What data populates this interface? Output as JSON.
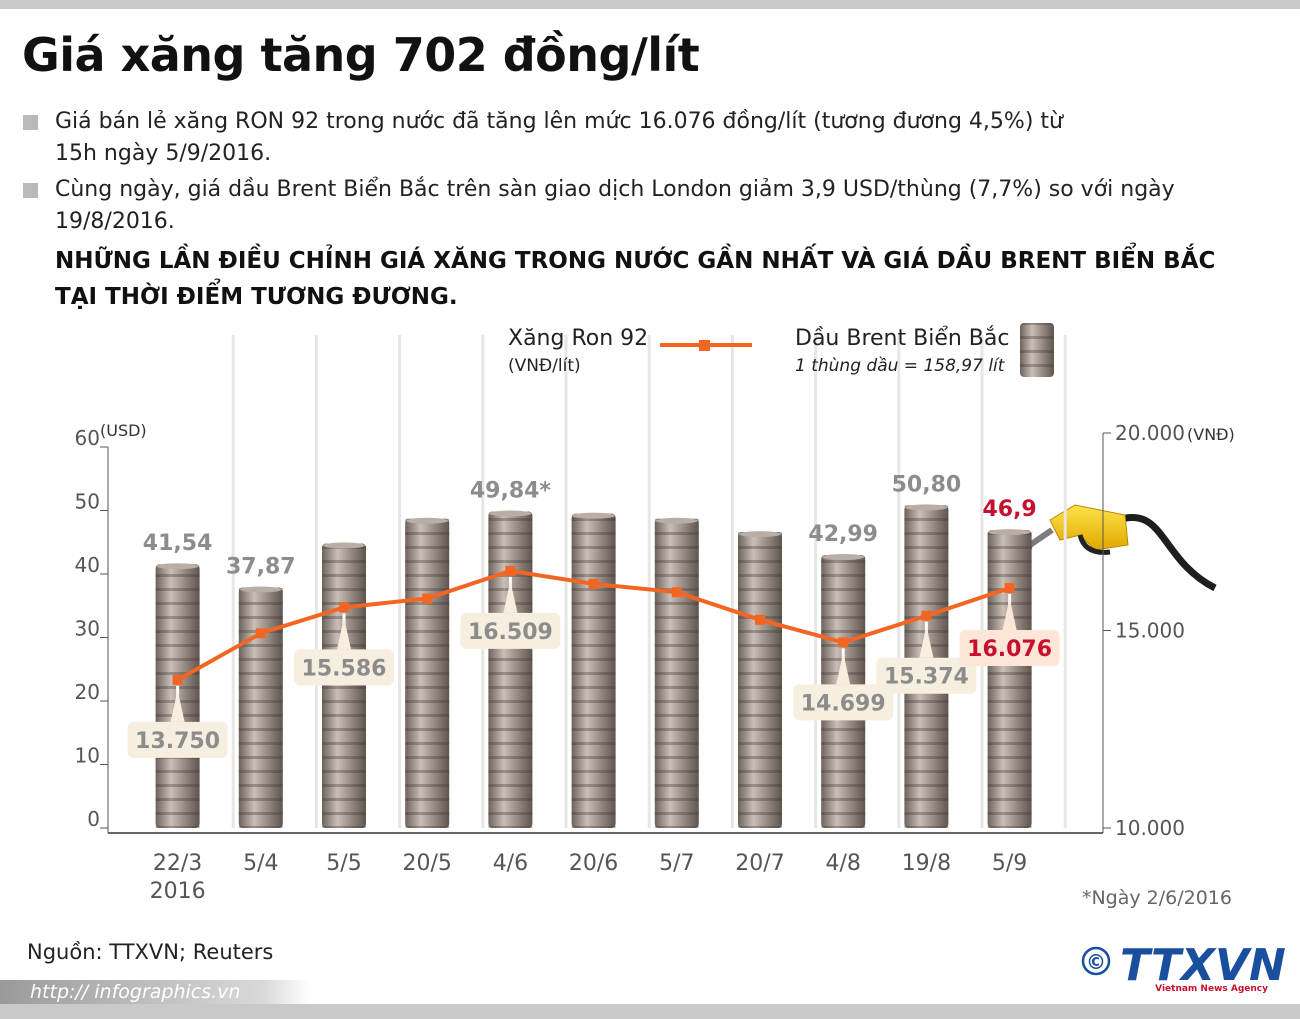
{
  "header": {
    "title": "Giá xăng tăng 702 đồng/lít",
    "bullets": [
      "Giá bán lẻ xăng RON 92 trong nước đã tăng lên mức 16.076 đồng/lít (tương đương 4,5%) từ 15h ngày 5/9/2016.",
      "Cùng ngày, giá dầu Brent Biển Bắc trên sàn giao dịch London giảm 3,9 USD/thùng (7,7%) so với ngày 19/8/2016."
    ]
  },
  "chart_data": {
    "type": "combo",
    "title": [
      "NHỮNG LẦN ĐIỀU CHỈNH GIÁ XĂNG TRONG NƯỚC GẦN NHẤT VÀ GIÁ DẦU BRENT BIỂN BẮC",
      "TẠI THỜI ĐIỂM TƯƠNG ĐƯƠNG."
    ],
    "categories": [
      "22/3",
      "5/4",
      "5/5",
      "20/5",
      "4/6",
      "20/6",
      "5/7",
      "20/7",
      "4/8",
      "19/8",
      "5/9"
    ],
    "category_note": "2016",
    "series": [
      {
        "name": "Xăng Ron 92",
        "unit": "(VNĐ/lít)",
        "type": "line",
        "axis": "y2",
        "color": "#f26522",
        "values": [
          13750,
          14930,
          15586,
          15810,
          16509,
          16180,
          15970,
          15270,
          14699,
          15374,
          16076
        ],
        "value_labels": [
          "13.750",
          null,
          "15.586",
          null,
          "16.509",
          null,
          null,
          null,
          "14.699",
          "15.374",
          "16.076"
        ]
      },
      {
        "name": "Dầu Brent Biển Bắc",
        "note": "1 thùng dầu = 158,97 lít",
        "type": "bar",
        "color": "#8f837a",
        "values": [
          41.54,
          37.87,
          44.8,
          48.7,
          49.84,
          49.5,
          48.7,
          46.6,
          42.99,
          50.8,
          46.9
        ],
        "value_labels": [
          "41,54",
          "37,87",
          null,
          null,
          "49,84*",
          null,
          null,
          null,
          "42,99",
          "50,80",
          "46,9"
        ]
      }
    ],
    "highlight_index": 10,
    "highlight_color": "#c8102e",
    "ylabel": "(USD)",
    "ylim": [
      0,
      60
    ],
    "yticks": [
      0,
      10,
      20,
      30,
      40,
      50,
      60
    ],
    "y2label": "(VNĐ)",
    "y2lim": [
      10000,
      20000
    ],
    "y2ticks": [
      {
        "value": 10000,
        "label": "10.000"
      },
      {
        "value": 15000,
        "label": "15.000"
      },
      {
        "value": 20000,
        "label": "20.000"
      }
    ],
    "footnote": "*Ngày 2/6/2016"
  },
  "footer": {
    "source": "Nguồn: TTXVN; Reuters",
    "url": "http:// infographics.vn",
    "copyright": "©",
    "logo": "TTXVN",
    "agency": "Vietnam News Agency"
  }
}
